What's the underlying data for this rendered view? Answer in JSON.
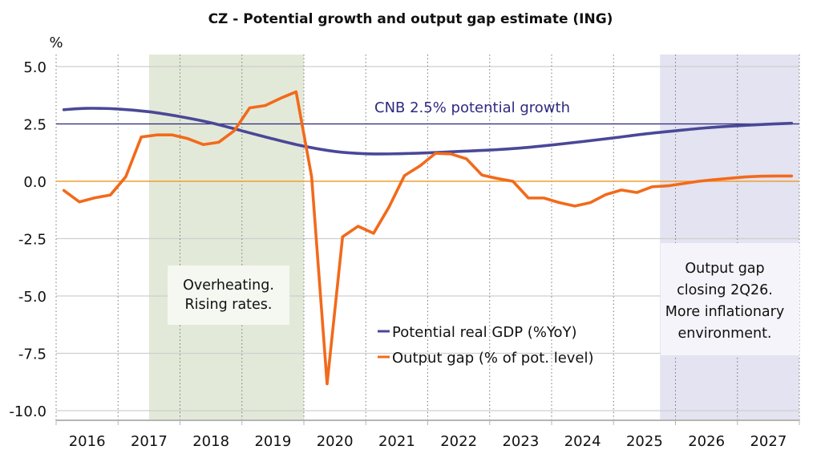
{
  "chart_data": {
    "type": "line",
    "title": "CZ - Potential growth and output gap estimate (ING)",
    "ylabel": "%",
    "xlabel": "",
    "ylim": [
      -10.5,
      5.3
    ],
    "xlim": [
      2016,
      2028
    ],
    "yticks": [
      5.0,
      2.5,
      0.0,
      -2.5,
      -5.0,
      -7.5,
      -10.0
    ],
    "ytick_labels": [
      "5.0",
      "2.5",
      "0.0",
      "-2.5",
      "-5.0",
      "-7.5",
      "-10.0"
    ],
    "xtick_labels": [
      "2016",
      "2017",
      "2018",
      "2019",
      "2020",
      "2021",
      "2022",
      "2023",
      "2024",
      "2025",
      "2026",
      "2027"
    ],
    "grid": true,
    "legend_position": "bottom-center",
    "colors": {
      "potential": "#4a4897",
      "output_gap": "#f26a1b",
      "cnb_line": "#2e2a80",
      "zero_line": "#f0a030",
      "shade_green": "#e3e9d8",
      "shade_blue": "#e3e3f1",
      "grid": "#cfcfcf"
    },
    "series": [
      {
        "name": "Potential real GDP (%YoY)",
        "x": [
          2016.125,
          2016.5,
          2017.0,
          2017.5,
          2018.0,
          2018.5,
          2019.0,
          2019.5,
          2020.0,
          2020.5,
          2021.0,
          2021.5,
          2022.0,
          2022.5,
          2023.0,
          2023.5,
          2024.0,
          2024.5,
          2025.0,
          2025.5,
          2026.0,
          2026.5,
          2027.0,
          2027.5,
          2027.875
        ],
        "values": [
          3.12,
          3.18,
          3.15,
          3.03,
          2.82,
          2.55,
          2.2,
          1.85,
          1.53,
          1.3,
          1.2,
          1.2,
          1.24,
          1.3,
          1.36,
          1.45,
          1.58,
          1.73,
          1.89,
          2.06,
          2.2,
          2.33,
          2.42,
          2.49,
          2.53
        ]
      },
      {
        "name": "Output gap (% of pot. level)",
        "x": [
          2016.125,
          2016.375,
          2016.625,
          2016.875,
          2017.125,
          2017.375,
          2017.625,
          2017.875,
          2018.125,
          2018.375,
          2018.625,
          2018.875,
          2019.125,
          2019.375,
          2019.625,
          2019.875,
          2020.125,
          2020.375,
          2020.625,
          2020.875,
          2021.125,
          2021.375,
          2021.625,
          2021.875,
          2022.125,
          2022.375,
          2022.625,
          2022.875,
          2023.125,
          2023.375,
          2023.625,
          2023.875,
          2024.125,
          2024.375,
          2024.625,
          2024.875,
          2025.125,
          2025.375,
          2025.625,
          2025.875,
          2026.125,
          2026.375,
          2026.625,
          2026.875,
          2027.125,
          2027.375,
          2027.625,
          2027.875
        ],
        "values": [
          -0.4,
          -0.9,
          -0.72,
          -0.6,
          0.2,
          1.93,
          2.02,
          2.02,
          1.86,
          1.6,
          1.7,
          2.2,
          3.2,
          3.3,
          3.62,
          3.9,
          0.2,
          -8.83,
          -2.42,
          -1.96,
          -2.27,
          -1.12,
          0.25,
          0.67,
          1.22,
          1.19,
          0.98,
          0.27,
          0.12,
          0.0,
          -0.73,
          -0.73,
          -0.93,
          -1.08,
          -0.93,
          -0.58,
          -0.38,
          -0.49,
          -0.24,
          -0.2,
          -0.1,
          0.0,
          0.07,
          0.13,
          0.19,
          0.22,
          0.23,
          0.23
        ]
      }
    ],
    "reference_lines": [
      {
        "name": "CNB 2.5% potential growth",
        "y": 2.5
      },
      {
        "name": "zero",
        "y": 0.0
      }
    ],
    "shaded_regions": [
      {
        "name": "overheating",
        "x_start": 2017.5,
        "x_end": 2020.0
      },
      {
        "name": "inflationary",
        "x_start": 2025.75,
        "x_end": 2028.0
      }
    ],
    "annotations": {
      "cnb_label": "CNB 2.5% potential growth",
      "overheating_lines": [
        "Overheating.",
        "Rising rates."
      ],
      "inflationary_lines": [
        "Output gap",
        "closing 2Q26.",
        "More inflationary",
        "environment."
      ]
    }
  }
}
